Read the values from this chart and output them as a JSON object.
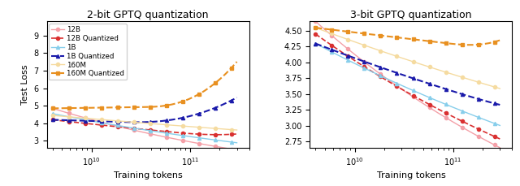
{
  "title_left": "2-bit GPTQ quantization",
  "title_right": "3-bit GPTQ quantization",
  "xlabel": "Training tokens",
  "ylabel": "Test Loss",
  "colors": {
    "12B": "#f4a0a8",
    "12B_q": "#d93030",
    "1B": "#87ceeb",
    "1B_q": "#1a1aaa",
    "160M": "#f5dba0",
    "160M_q": "#e89020"
  },
  "xlim_left": [
    3500000000.0,
    400000000000.0
  ],
  "xlim_right": [
    3500000000.0,
    400000000000.0
  ],
  "ylim_left": [
    2.6,
    9.8
  ],
  "ylim_right": [
    2.65,
    4.65
  ],
  "yticks_left": [
    3,
    4,
    5,
    6,
    7,
    8,
    9
  ],
  "yticks_right": [
    2.75,
    3.0,
    3.25,
    3.5,
    3.75,
    4.0,
    4.25,
    4.5
  ],
  "legend_entries": [
    "12B",
    "12B Quantized",
    "1B",
    "1B Quantized",
    "160M",
    "160M Quantized"
  ]
}
